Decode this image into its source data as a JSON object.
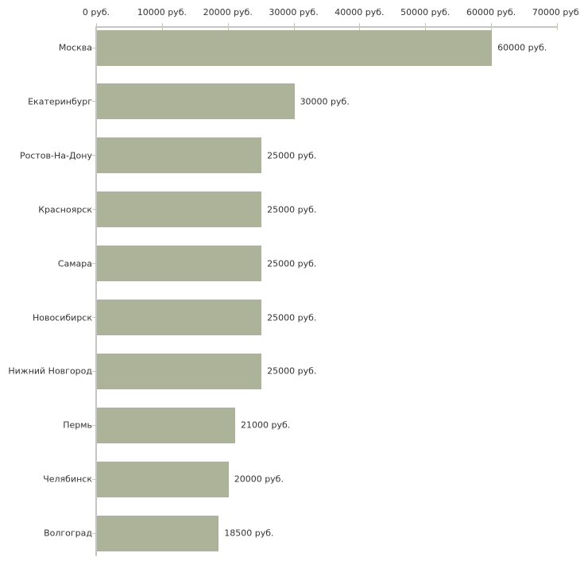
{
  "chart_data": {
    "type": "bar",
    "orientation": "horizontal",
    "title": "",
    "xlabel": "",
    "ylabel": "",
    "unit": "руб.",
    "xlim": [
      0,
      70000
    ],
    "grid": false,
    "legend": false,
    "x_ticks": [
      0,
      10000,
      20000,
      30000,
      40000,
      50000,
      60000,
      70000
    ],
    "x_tick_labels": [
      "0 руб.",
      "10000 руб.",
      "20000 руб.",
      "30000 руб.",
      "40000 руб.",
      "50000 руб.",
      "60000 руб.",
      "70000 руб."
    ],
    "categories": [
      "Москва",
      "Екатеринбург",
      "Ростов-На-Дону",
      "Красноярск",
      "Самара",
      "Новосибирск",
      "Нижний Новгород",
      "Пермь",
      "Челябинск",
      "Волгоград"
    ],
    "values": [
      60000,
      30000,
      25000,
      25000,
      25000,
      25000,
      25000,
      21000,
      20000,
      18500
    ],
    "bar_labels": [
      "60000 руб.",
      "30000 руб.",
      "25000 руб.",
      "25000 руб.",
      "25000 руб.",
      "25000 руб.",
      "25000 руб.",
      "21000 руб.",
      "20000 руб.",
      "18500 руб."
    ],
    "colors": {
      "bar": "#acb399",
      "axis_line": "#c5c5c5",
      "tick": "#c9c9a6",
      "category_tick": "#ccc9ba",
      "text": "#333333",
      "background": "#ffffff"
    }
  }
}
